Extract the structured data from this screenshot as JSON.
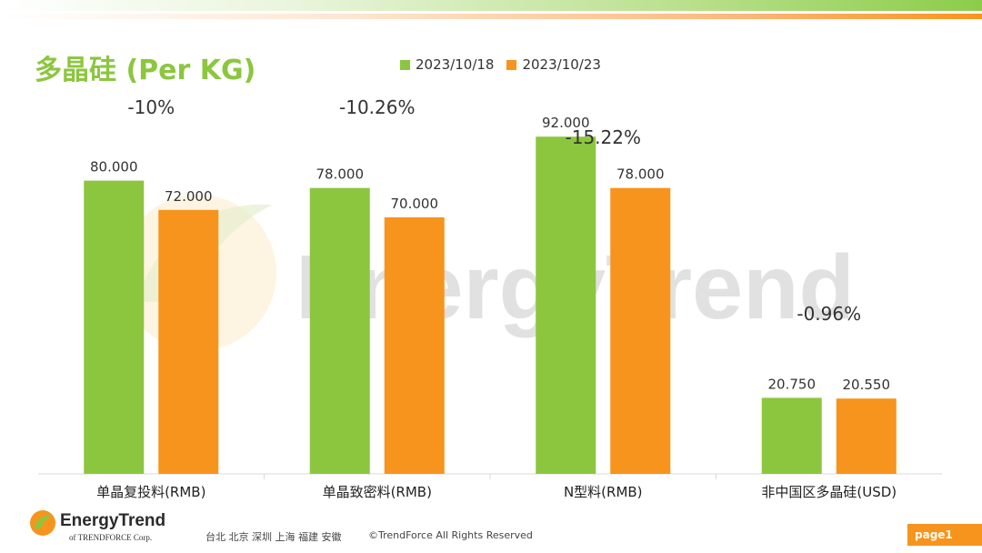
{
  "colors": {
    "series1": "#8cc63f",
    "series2": "#f7941d",
    "title": "#8cc63f",
    "watermark": "#c8c8c8"
  },
  "header": {
    "title": "多晶硅 (Per KG)"
  },
  "legend": {
    "items": [
      "2023/10/18",
      "2023/10/23"
    ]
  },
  "chart_data": {
    "type": "bar",
    "title": "多晶硅 (Per KG)",
    "categories": [
      "单晶复投料(RMB)",
      "单晶致密料(RMB)",
      "N型料(RMB)",
      "非中国区多晶硅(USD)"
    ],
    "series": [
      {
        "name": "2023/10/18",
        "values": [
          80.0,
          78.0,
          92.0,
          20.75
        ]
      },
      {
        "name": "2023/10/23",
        "values": [
          72.0,
          70.0,
          78.0,
          20.55
        ]
      }
    ],
    "value_labels": [
      [
        "80.000",
        "78.000",
        "92.000",
        "20.750"
      ],
      [
        "72.000",
        "70.000",
        "78.000",
        "20.550"
      ]
    ],
    "change_labels": [
      "-10%",
      "-10.26%",
      "-15.22%",
      "-0.96%"
    ],
    "ylim": [
      0,
      100
    ],
    "grid": false,
    "legend_position": "top"
  },
  "watermark": {
    "text": "EnergyTrend"
  },
  "footer": {
    "logo_text": "EnergyTrend",
    "logo_sub": "of TRENDFORCE Corp.",
    "cities": "台北  北京  深圳  上海  福建  安徽",
    "copyright": "©TrendForce All Rights Reserved",
    "page": "page1"
  }
}
